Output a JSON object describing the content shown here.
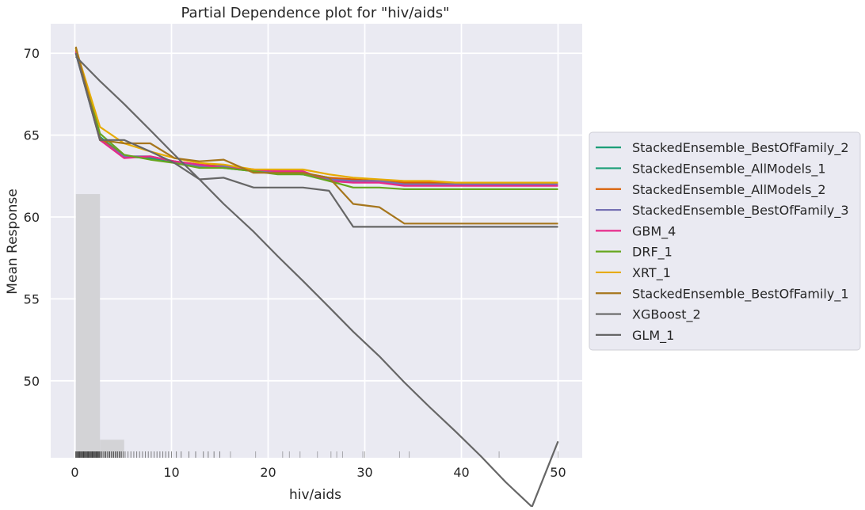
{
  "chart_data": {
    "type": "line",
    "title": "Partial Dependence plot for \"hiv/aids\"",
    "xlabel": "hiv/aids",
    "ylabel": "Mean Response",
    "xlim": [
      -2.5,
      52.5
    ],
    "ylim": [
      45.3,
      71.8
    ],
    "xticks": [
      0,
      10,
      20,
      30,
      40,
      50
    ],
    "yticks": [
      50,
      55,
      60,
      65,
      70
    ],
    "grid": true,
    "background": "#eaeaf2",
    "grid_color": "#ffffff",
    "legend_placement": "right",
    "histogram": {
      "color": "#d3d3d6",
      "bins": [
        {
          "x0": 0.1,
          "x1": 2.6,
          "value": 61.4
        },
        {
          "x0": 2.6,
          "x1": 5.1,
          "value": 46.4
        }
      ]
    },
    "rug": {
      "color": "#262626",
      "x": [
        0.1,
        0.2,
        0.3,
        0.4,
        0.5,
        0.6,
        0.7,
        0.8,
        0.9,
        1.0,
        1.1,
        1.2,
        1.3,
        1.4,
        1.5,
        1.6,
        1.7,
        1.8,
        1.9,
        2.0,
        2.1,
        2.2,
        2.3,
        2.4,
        2.5,
        2.6,
        2.8,
        3.0,
        3.2,
        3.4,
        3.6,
        3.8,
        4.0,
        4.2,
        4.4,
        4.6,
        4.8,
        5.0,
        5.2,
        5.5,
        5.8,
        6.1,
        6.4,
        6.7,
        7.0,
        7.3,
        7.6,
        7.9,
        8.2,
        8.5,
        8.8,
        9.1,
        9.4,
        9.7,
        10.0,
        10.5,
        11.0,
        11.8,
        12.5,
        13.3,
        13.8,
        14.4,
        15.0,
        16.1,
        18.7,
        21.5,
        22.2,
        23.3,
        25.1,
        26.5,
        27.1,
        27.7,
        29.8,
        30.0,
        33.6,
        34.6,
        43.9,
        50.0
      ]
    },
    "x": [
      0.1,
      2.6,
      5.1,
      7.8,
      10.3,
      12.9,
      15.4,
      18.5,
      21.0,
      23.6,
      26.3,
      28.8,
      31.5,
      34.1,
      36.7,
      39.4,
      42.0,
      44.6,
      47.3,
      50.0
    ],
    "series": [
      {
        "name": "StackedEnsemble_BestOfFamily_2",
        "color": "#1b9e77",
        "values": [
          70.0,
          64.7,
          63.7,
          63.6,
          63.4,
          63.1,
          63.1,
          62.8,
          62.7,
          62.6,
          62.3,
          62.2,
          62.2,
          62.1,
          62.1,
          62.1,
          62.1,
          62.1,
          62.1,
          62.1
        ]
      },
      {
        "name": "StackedEnsemble_AllModels_1",
        "color": "#1b9e77",
        "values": [
          70.1,
          64.9,
          63.7,
          63.6,
          63.3,
          63.1,
          63.0,
          62.8,
          62.7,
          62.6,
          62.3,
          62.2,
          62.2,
          62.0,
          62.0,
          62.0,
          62.0,
          62.0,
          62.0,
          62.0
        ]
      },
      {
        "name": "StackedEnsemble_AllModels_2",
        "color": "#d95f02",
        "values": [
          70.2,
          64.8,
          63.7,
          63.7,
          63.4,
          63.2,
          63.1,
          62.9,
          62.8,
          62.7,
          62.4,
          62.3,
          62.2,
          62.1,
          62.1,
          62.1,
          62.1,
          62.1,
          62.1,
          62.1
        ]
      },
      {
        "name": "StackedEnsemble_BestOfFamily_3",
        "color": "#7570b3",
        "values": [
          70.0,
          64.7,
          63.7,
          63.7,
          63.4,
          63.1,
          63.1,
          62.8,
          62.7,
          62.7,
          62.3,
          62.2,
          62.2,
          62.0,
          62.0,
          62.0,
          62.0,
          62.0,
          62.0,
          62.0
        ]
      },
      {
        "name": "GBM_4",
        "color": "#e7298a",
        "values": [
          70.1,
          64.7,
          63.6,
          63.7,
          63.4,
          63.2,
          63.0,
          62.9,
          62.8,
          62.8,
          62.2,
          62.1,
          62.1,
          61.9,
          61.9,
          61.9,
          61.9,
          61.9,
          61.9,
          61.9
        ]
      },
      {
        "name": "DRF_1",
        "color": "#66a61e",
        "values": [
          70.3,
          65.1,
          63.8,
          63.5,
          63.3,
          63.0,
          63.0,
          62.8,
          62.6,
          62.6,
          62.2,
          61.8,
          61.8,
          61.7,
          61.7,
          61.7,
          61.7,
          61.7,
          61.7,
          61.7
        ]
      },
      {
        "name": "XRT_1",
        "color": "#e6ab02",
        "values": [
          70.3,
          65.5,
          64.5,
          64.0,
          63.6,
          63.3,
          63.2,
          62.9,
          62.9,
          62.9,
          62.6,
          62.4,
          62.3,
          62.2,
          62.2,
          62.1,
          62.1,
          62.1,
          62.1,
          62.1
        ]
      },
      {
        "name": "StackedEnsemble_BestOfFamily_1",
        "color": "#a6761d",
        "values": [
          70.4,
          64.7,
          64.5,
          64.5,
          63.6,
          63.4,
          63.5,
          62.7,
          62.7,
          62.7,
          62.4,
          60.8,
          60.6,
          59.6,
          59.6,
          59.6,
          59.6,
          59.6,
          59.6,
          59.6
        ]
      },
      {
        "name": "XGBoost_2",
        "color": "#666666",
        "values": [
          70.0,
          64.7,
          64.7,
          64.0,
          63.3,
          62.3,
          62.4,
          61.8,
          61.8,
          61.8,
          61.6,
          59.4,
          59.4,
          59.4,
          59.4,
          59.4,
          59.4,
          59.4,
          59.4,
          59.4
        ]
      },
      {
        "name": "GLM_1",
        "color": "#666666",
        "values": [
          69.8,
          68.3,
          66.9,
          65.3,
          63.8,
          62.3,
          60.8,
          59.1,
          57.6,
          56.1,
          54.5,
          53.0,
          51.5,
          49.9,
          48.4,
          46.9,
          45.4,
          43.8,
          42.3,
          46.3
        ]
      }
    ]
  }
}
